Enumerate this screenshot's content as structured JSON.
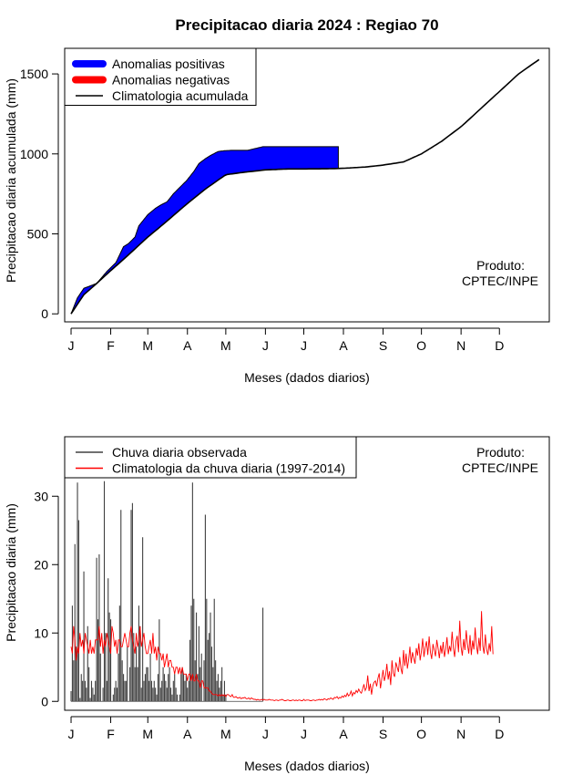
{
  "title": "Precipitacao diaria 2024 : Regiao 70",
  "chart_data": [
    {
      "type": "area",
      "xlabel": "Meses (dados diarios)",
      "ylabel": "Precipitacao diaria acumulada (mm)",
      "month_ticks": [
        "J",
        "F",
        "M",
        "A",
        "M",
        "J",
        "J",
        "A",
        "S",
        "O",
        "N",
        "D"
      ],
      "yticks": [
        0,
        500,
        1000,
        1500
      ],
      "ylim": [
        -50,
        1660
      ],
      "xlim": [
        -5,
        374
      ],
      "legend": [
        {
          "label": "Anomalias positivas",
          "color": "#0000ff"
        },
        {
          "label": "Anomalias negativas",
          "color": "#ff0000"
        },
        {
          "label": "Climatologia acumulada",
          "color": "#000000"
        }
      ],
      "legend_position": "top-left",
      "credit_line1": "Produto:",
      "credit_line2": "CPTEC/INPE",
      "climatology_day": [
        0,
        10,
        20,
        31,
        45,
        60,
        75,
        91,
        105,
        121,
        135,
        152,
        170,
        182,
        200,
        213,
        230,
        244,
        260,
        274,
        290,
        305,
        320,
        335,
        350,
        366
      ],
      "climatology_mm": [
        0,
        120,
        190,
        270,
        370,
        480,
        580,
        690,
        780,
        870,
        885,
        900,
        906,
        906,
        907,
        910,
        918,
        930,
        950,
        1000,
        1080,
        1170,
        1280,
        1390,
        1500,
        1590
      ],
      "observed_day": [
        0,
        5,
        10,
        20,
        28,
        35,
        41,
        45,
        50,
        53,
        60,
        66,
        70,
        75,
        80,
        85,
        90,
        96,
        100,
        105,
        109,
        115,
        120,
        125,
        130,
        138,
        150,
        166,
        175,
        185,
        195,
        208,
        209
      ],
      "observed_mm": [
        0,
        100,
        160,
        190,
        265,
        320,
        420,
        440,
        480,
        550,
        620,
        660,
        680,
        700,
        750,
        790,
        830,
        890,
        940,
        970,
        990,
        1015,
        1020,
        1022,
        1022,
        1022,
        1045,
        1045,
        1045,
        1045,
        1045,
        1045,
        1045
      ]
    },
    {
      "type": "bar",
      "xlabel": "Meses (dados diarios)",
      "ylabel": "Precipitacao diaria (mm)",
      "month_ticks": [
        "J",
        "F",
        "M",
        "A",
        "M",
        "J",
        "J",
        "A",
        "S",
        "O",
        "N",
        "D"
      ],
      "yticks": [
        0,
        10,
        20,
        30
      ],
      "ylim": [
        -1.3,
        38.7
      ],
      "xlim": [
        -5,
        374
      ],
      "legend": [
        {
          "label": "Chuva diaria observada",
          "color": "#404040"
        },
        {
          "label": "Climatologia da chuva diaria (1997-2014)",
          "color": "#ff0000"
        }
      ],
      "legend_position": "top-left",
      "credit_line1": "Produto:",
      "credit_line2": "CPTEC/INPE",
      "observed_daily_mm": [
        1.5,
        14,
        6,
        23,
        8,
        32,
        26.5,
        0.5,
        4,
        3,
        19,
        3,
        2,
        11,
        5,
        0.5,
        3,
        2,
        1,
        3,
        21,
        12,
        21.5,
        7,
        0,
        2,
        32.2,
        10,
        3,
        18,
        13,
        12,
        0,
        1,
        2,
        3,
        2,
        7,
        14,
        28,
        6,
        4,
        3,
        3,
        8,
        0,
        5,
        28,
        29,
        10,
        5,
        8,
        5,
        14,
        11,
        2,
        24,
        3,
        4,
        5,
        5,
        3,
        7,
        3,
        2,
        3,
        2,
        1,
        4,
        12,
        2,
        3,
        5,
        4,
        3,
        2,
        4,
        5,
        2,
        1,
        3,
        4,
        2,
        1,
        0,
        1,
        4,
        5,
        4,
        3,
        4,
        2,
        3,
        9,
        14,
        32,
        15,
        6,
        13,
        4,
        11,
        5,
        7,
        0,
        6,
        27.3,
        15,
        9,
        10,
        13,
        8,
        5,
        15,
        6,
        3,
        4,
        2,
        3,
        5,
        1,
        3,
        1,
        0,
        0,
        0,
        0,
        0,
        0,
        0,
        0,
        0,
        0,
        0,
        0,
        0,
        0,
        0,
        0,
        0,
        0,
        0,
        0,
        0,
        0,
        0,
        0,
        0,
        0,
        0,
        0,
        13.7
      ],
      "climatology_daily_mm": [
        8,
        7,
        11,
        9,
        6,
        8,
        7,
        10,
        8,
        9,
        7,
        10,
        9,
        8,
        7,
        9,
        7,
        8,
        7,
        9,
        9,
        9,
        11,
        8,
        10,
        7,
        9,
        8,
        10,
        9,
        8,
        7,
        11,
        10,
        8,
        9,
        7,
        9,
        9,
        8,
        8,
        9,
        10,
        9,
        8,
        8,
        10,
        11,
        9,
        8,
        7,
        10,
        8,
        9,
        11,
        8,
        9,
        10,
        8,
        7,
        7,
        8,
        9,
        7,
        10,
        7,
        8,
        6,
        8,
        7,
        7,
        6,
        7,
        5,
        6,
        7,
        5,
        6,
        6,
        5,
        5,
        4,
        5,
        5,
        4,
        5,
        4,
        5,
        4,
        4,
        4,
        3,
        4,
        4,
        3,
        4,
        3,
        3,
        4,
        3,
        3,
        2,
        3,
        3,
        2,
        2,
        2,
        2,
        1.5,
        1.5,
        1.2,
        1,
        1,
        1,
        1,
        0.8,
        1,
        0.8,
        1,
        0.8,
        1,
        0.7,
        1,
        1,
        0.8,
        0.7,
        1,
        0.6,
        0.6,
        0.7,
        0.5,
        0.5,
        0.6,
        0.4,
        0.5,
        0.5,
        0.6,
        0.4,
        0.4,
        0.5,
        0.3,
        0.5,
        0.4,
        0.3,
        0.3,
        0.2,
        0.3,
        0.2,
        0.2,
        0.3,
        0.2,
        0.3,
        0.2,
        0.2,
        0.2,
        0.3,
        0.2,
        0.2,
        0.2,
        0.1,
        0.2,
        0.2,
        0.1,
        0.2,
        0.2,
        0.3,
        0.2,
        0.1,
        0.1,
        0.2,
        0.2,
        0.1,
        0.1,
        0.2,
        0.2,
        0.1,
        0.2,
        0.1,
        0.2,
        0.2,
        0.1,
        0.1,
        0.3,
        0.1,
        0.2,
        0.2,
        0.2,
        0.1,
        0.1,
        0.2,
        0.2,
        0.1,
        0.2,
        0.2,
        0.3,
        0.2,
        0.3,
        0.2,
        0.4,
        0.3,
        0.2,
        0.4,
        0.3,
        0.5,
        0.4,
        0.3,
        0.6,
        0.5,
        0.7,
        0.4,
        0.6,
        0.5,
        0.8,
        0.6,
        0.9,
        0.7,
        1.2,
        0.8,
        1,
        1.5,
        0.8,
        1.3,
        1.1,
        1.6,
        1.3,
        1.8,
        1.4,
        1.2,
        1.8,
        2.5,
        1.6,
        2,
        3.8,
        1.5,
        2.6,
        1,
        2.3,
        2.8,
        3,
        2.2,
        3.4,
        4.1,
        1.9,
        3.3,
        4.6,
        3,
        3.8,
        5.5,
        3.2,
        4.4,
        2.4,
        6,
        4.1,
        3.6,
        5.7,
        5,
        4.3,
        6.5,
        4.8,
        4,
        7.5,
        5.2,
        7,
        4.8,
        6.1,
        8,
        5.6,
        7.2,
        6.3,
        5.5,
        7.8,
        6.7,
        8.5,
        6,
        7.3,
        9.2,
        6.5,
        7.9,
        8.8,
        6.8,
        9.5,
        7.2,
        6.2,
        8.4,
        7.5,
        6.6,
        9,
        7.8,
        6.3,
        8.2,
        7,
        8.7,
        6.5,
        7.6,
        9.4,
        6.9,
        8.1,
        7.3,
        10.2,
        7.8,
        6.5,
        8.8,
        9.6,
        7.2,
        11.8,
        8,
        6.7,
        9.1,
        7.5,
        10.4,
        8.3,
        7,
        9.7,
        6.8,
        8.9,
        7.6,
        10.8,
        8.2,
        6.9,
        9.3,
        7.4,
        13.2,
        8.1,
        7,
        9.8,
        7.6,
        6.8,
        8.5,
        7.3,
        11,
        6.9
      ]
    }
  ]
}
